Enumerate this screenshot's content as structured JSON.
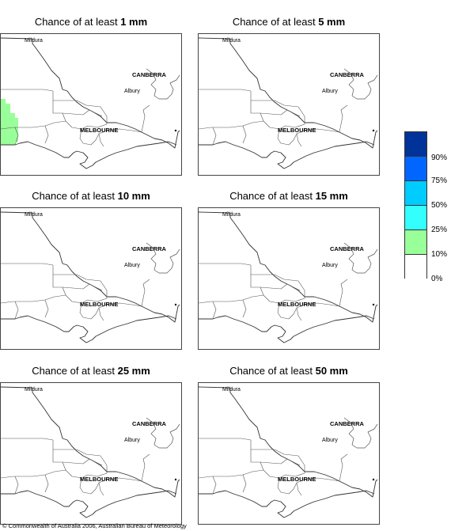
{
  "panels": [
    {
      "title_prefix": "Chance of at least ",
      "threshold": "1 mm",
      "shaded": true
    },
    {
      "title_prefix": "Chance of at least ",
      "threshold": "5 mm",
      "shaded": false
    },
    {
      "title_prefix": "Chance of at least ",
      "threshold": "10 mm",
      "shaded": false
    },
    {
      "title_prefix": "Chance of at least ",
      "threshold": "15 mm",
      "shaded": false
    },
    {
      "title_prefix": "Chance of at least ",
      "threshold": "25 mm",
      "shaded": false
    },
    {
      "title_prefix": "Chance of at least ",
      "threshold": "50 mm",
      "shaded": false
    }
  ],
  "map_labels": {
    "mildura": "Mildura",
    "canberra": "CANBERRA",
    "albury": "Albury",
    "melbourne": "MELBOURNE"
  },
  "legend": {
    "levels": [
      {
        "label": "90%",
        "color": "#003399"
      },
      {
        "label": "75%",
        "color": "#0066ff"
      },
      {
        "label": "50%",
        "color": "#00ccff"
      },
      {
        "label": "25%",
        "color": "#33ffff"
      },
      {
        "label": "10%",
        "color": "#99ff99"
      },
      {
        "label": "0%",
        "color": "#ffffff"
      }
    ]
  },
  "shade_color": "#99ff99",
  "copyright": "© Commonwealth of Australia 2006, Australian Bureau of Meteorology"
}
